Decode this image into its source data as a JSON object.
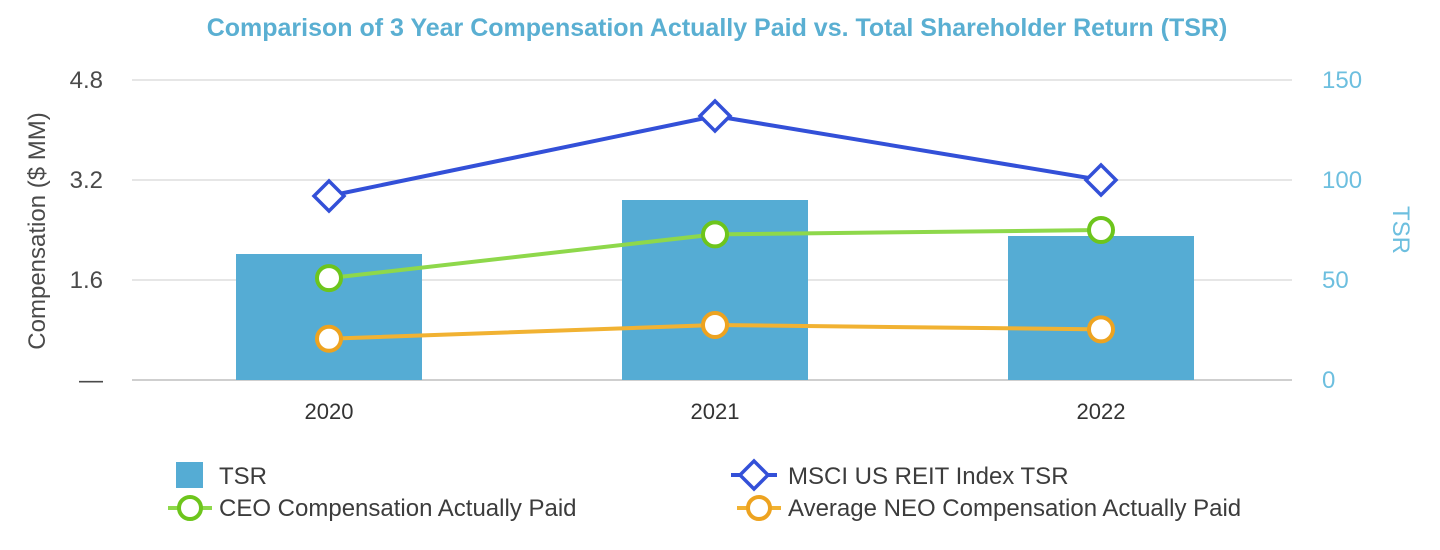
{
  "colors": {
    "title": "#5aafd2",
    "tsr_bar": "#55acd4",
    "msci_line": "#3350d8",
    "ceo_line": "#8ed84b",
    "ceo_marker": "#6dc51c",
    "neo_line": "#f1b232",
    "neo_marker": "#eda320",
    "left_axis_text": "#4a4a4a",
    "right_axis_text": "#6dbfdf",
    "grid": "#e6e6e6"
  },
  "chart_data": {
    "type": "bar",
    "title": "Comparison of 3 Year Compensation Actually Paid vs. Total Shareholder Return (TSR)",
    "categories": [
      "2020",
      "2021",
      "2022"
    ],
    "y_left": {
      "label": "Compensation ($ MM)",
      "ylim": [
        0,
        4.8
      ],
      "ticks": [
        0,
        1.6,
        3.2,
        4.8
      ],
      "tick_labels": [
        "—",
        "1.6",
        "3.2",
        "4.8"
      ]
    },
    "y_right": {
      "label": "TSR",
      "ylim": [
        0,
        150
      ],
      "ticks": [
        0,
        50,
        100,
        150
      ],
      "tick_labels": [
        "0",
        "50",
        "100",
        "150"
      ]
    },
    "grid": true,
    "legend_position": "bottom",
    "series": [
      {
        "name": "TSR",
        "kind": "bar",
        "axis": "right",
        "values": [
          63,
          90,
          72
        ]
      },
      {
        "name": "MSCI US REIT Index TSR",
        "kind": "line",
        "marker": "diamond",
        "axis": "right",
        "values": [
          92,
          132,
          100
        ]
      },
      {
        "name": "CEO Compensation Actually Paid",
        "kind": "line",
        "marker": "circle",
        "axis": "left",
        "values": [
          1.63,
          2.33,
          2.4
        ]
      },
      {
        "name": "Average NEO Compensation Actually Paid",
        "kind": "line",
        "marker": "circle",
        "axis": "left",
        "values": [
          0.66,
          0.88,
          0.81
        ]
      }
    ]
  }
}
